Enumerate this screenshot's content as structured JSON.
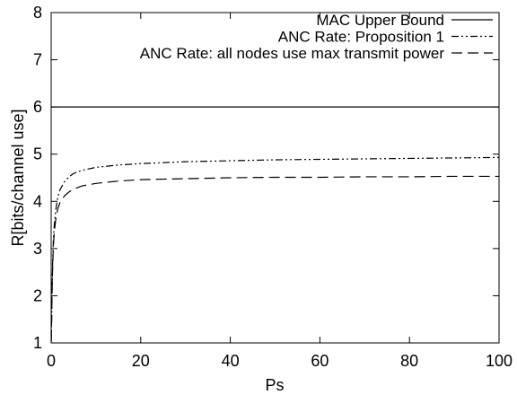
{
  "chart_data": {
    "type": "line",
    "title": "",
    "xlabel": "Ps",
    "ylabel": "R[bits/channel use]",
    "xlim": [
      0,
      100
    ],
    "ylim": [
      1,
      8
    ],
    "xticks": [
      0,
      20,
      40,
      60,
      80,
      100
    ],
    "yticks": [
      1,
      2,
      3,
      4,
      5,
      6,
      7,
      8
    ],
    "grid": false,
    "legend_position": "top-right",
    "series": [
      {
        "name": "MAC Upper Bound",
        "color": "#000000",
        "dash": "solid",
        "x": [
          0,
          100
        ],
        "y": [
          6,
          6
        ]
      },
      {
        "name": "ANC Rate: Proposition 1",
        "color": "#000000",
        "dash": "dash-dot-dot",
        "x": [
          0.01,
          0.05,
          0.1,
          0.2,
          0.3,
          0.5,
          0.7,
          1,
          1.5,
          2,
          3,
          4,
          5,
          7,
          10,
          15,
          20,
          25,
          30,
          40,
          50,
          60,
          70,
          80,
          90,
          100
        ],
        "y": [
          1.03,
          1.15,
          1.45,
          2.1,
          2.6,
          3.2,
          3.5,
          3.8,
          4.1,
          4.25,
          4.42,
          4.52,
          4.59,
          4.66,
          4.72,
          4.77,
          4.8,
          4.82,
          4.84,
          4.86,
          4.88,
          4.89,
          4.9,
          4.91,
          4.92,
          4.93
        ]
      },
      {
        "name": "ANC Rate: all nodes use max transmit power",
        "color": "#000000",
        "dash": "long-dash",
        "x": [
          0.01,
          0.05,
          0.1,
          0.2,
          0.3,
          0.5,
          0.7,
          1,
          1.5,
          2,
          3,
          4,
          5,
          7,
          10,
          15,
          20,
          25,
          30,
          40,
          50,
          60,
          70,
          80,
          90,
          100
        ],
        "y": [
          1.03,
          1.15,
          1.42,
          2.05,
          2.5,
          3.05,
          3.35,
          3.6,
          3.85,
          3.98,
          4.12,
          4.2,
          4.26,
          4.33,
          4.38,
          4.43,
          4.46,
          4.47,
          4.48,
          4.5,
          4.51,
          4.51,
          4.52,
          4.52,
          4.53,
          4.53
        ]
      }
    ]
  }
}
